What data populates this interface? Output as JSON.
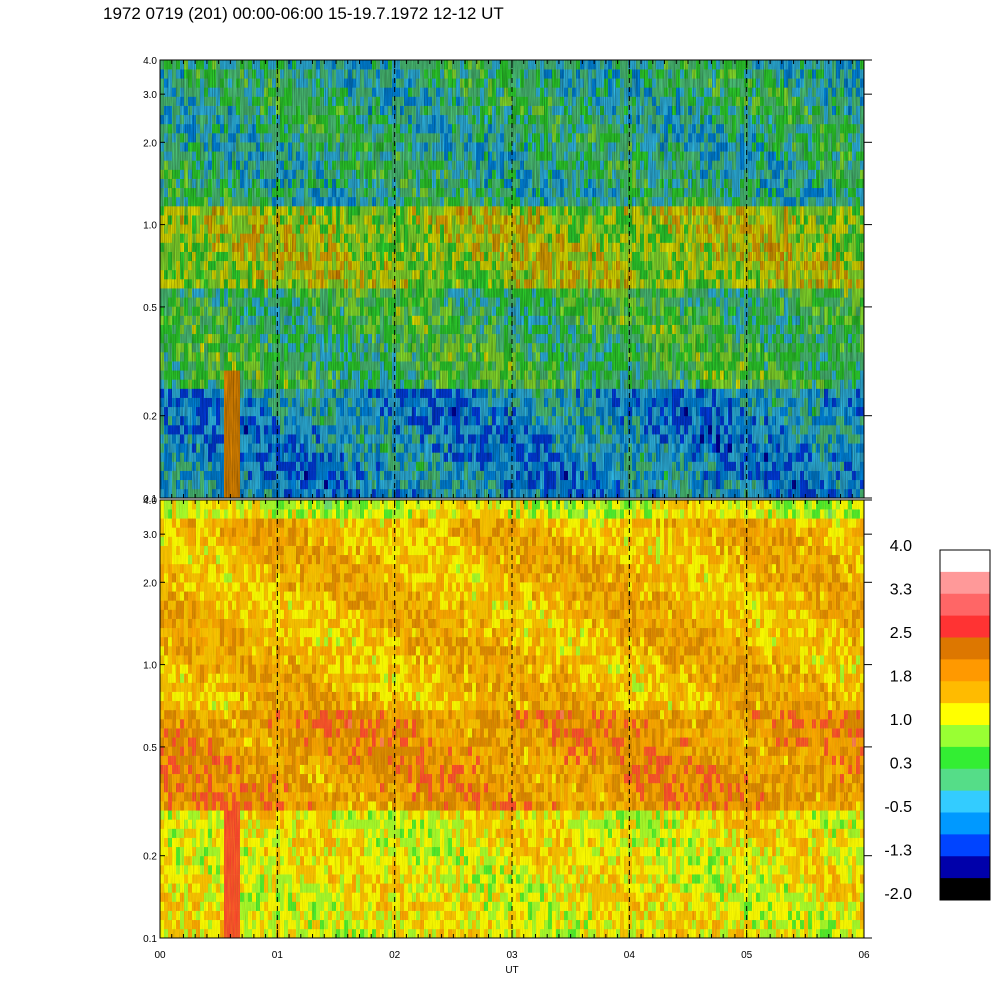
{
  "chart_data": {
    "type": "heatmap",
    "title": "1972 0719 (201) 00:00-06:00 15-19.7.1972  12-12 UT",
    "xlabel": "UT",
    "x_tick_labels": [
      "00",
      "01",
      "02",
      "03",
      "04",
      "05",
      "06"
    ],
    "xlim": [
      0,
      6
    ],
    "y_tick_labels": [
      "0.1",
      "0.2",
      "0.5",
      "1.0",
      "2.0",
      "3.0",
      "4.0"
    ],
    "y_tick_values": [
      0.1,
      0.2,
      0.5,
      1.0,
      2.0,
      3.0,
      4.0
    ],
    "ylim": [
      0.1,
      4.0
    ],
    "yscale": "log",
    "dashed_gridlines_x": [
      1,
      2,
      3,
      4,
      5
    ],
    "panels": [
      {
        "name": "upper",
        "dominant_levels": [
          {
            "y_range": [
              0.1,
              0.25
            ],
            "level": -0.5
          },
          {
            "y_range": [
              0.25,
              0.6
            ],
            "level": 0.3
          },
          {
            "y_range": [
              0.6,
              1.2
            ],
            "level": 1.0
          },
          {
            "y_range": [
              1.2,
              4.0
            ],
            "level": 0.0
          }
        ],
        "spike_at_x": 0.62
      },
      {
        "name": "lower",
        "dominant_levels": [
          {
            "y_range": [
              0.1,
              0.3
            ],
            "level": 1.2
          },
          {
            "y_range": [
              0.3,
              0.7
            ],
            "level": 2.1
          },
          {
            "y_range": [
              0.7,
              3.5
            ],
            "level": 1.7
          },
          {
            "y_range": [
              3.5,
              4.0
            ],
            "level": 1.0
          }
        ],
        "spike_at_x": 0.62
      }
    ],
    "colorbar": {
      "labels": [
        "4.0",
        "3.3",
        "2.5",
        "1.8",
        "1.0",
        "0.3",
        "-0.5",
        "-1.3",
        "-2.0"
      ],
      "colors": [
        "#ffffff",
        "#ff9999",
        "#ff6666",
        "#ff3333",
        "#dd7700",
        "#ff9900",
        "#ffbb00",
        "#ffff00",
        "#99ff33",
        "#33ee33",
        "#55dd88",
        "#33ccff",
        "#0099ff",
        "#0044ff",
        "#0000aa",
        "#000000"
      ]
    }
  }
}
